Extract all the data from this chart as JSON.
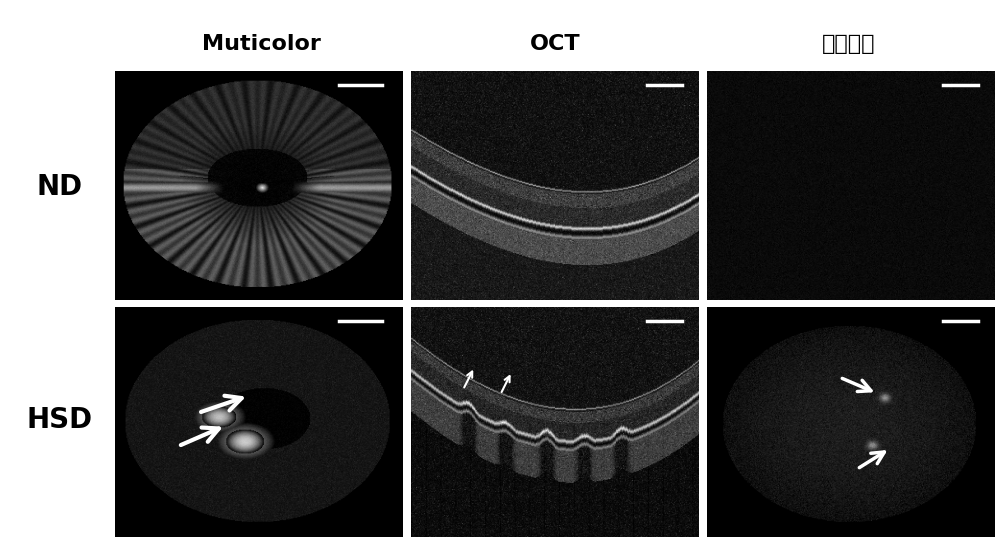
{
  "col_labels": [
    "Muticolor",
    "OCT",
    "自发荧光"
  ],
  "row_labels": [
    "ND",
    "HSD"
  ],
  "background_color": "#ffffff",
  "label_color": "#000000",
  "col_label_fontsize": 16,
  "row_label_fontsize": 20,
  "col_label_fontweight": "bold",
  "row_label_fontweight": "bold",
  "figure_width": 10.0,
  "figure_height": 5.45,
  "dpi": 100
}
